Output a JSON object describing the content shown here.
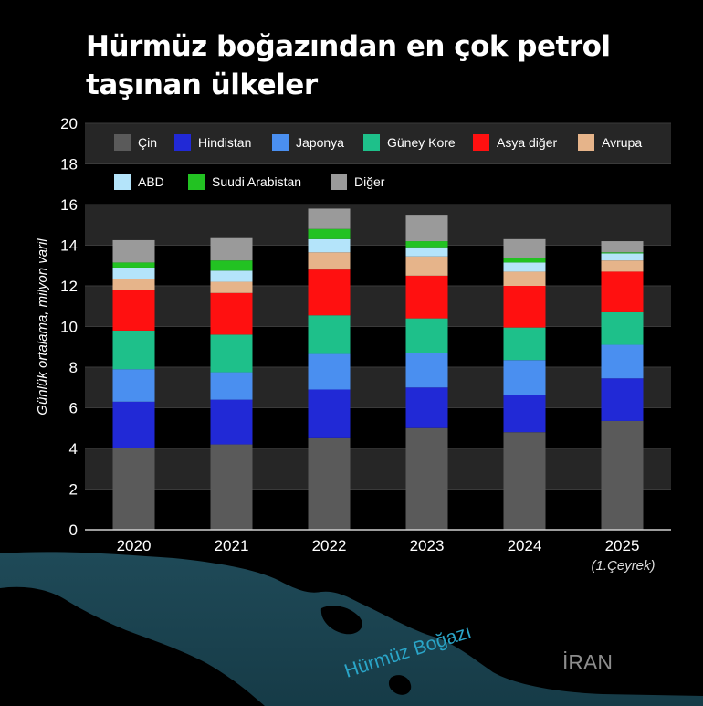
{
  "title": "Hürmüz boğazından en çok petrol taşınan ülkeler",
  "map": {
    "strait_label": "Hürmüz Boğazı",
    "country_label": "İRAN"
  },
  "chart_data": {
    "type": "bar",
    "stacked": true,
    "title": "Hürmüz boğazından en çok petrol taşınan ülkeler",
    "xlabel": "",
    "ylabel": "Günlük ortalama, milyon varil",
    "ylim": [
      0,
      20
    ],
    "yticks": [
      0,
      2,
      4,
      6,
      8,
      10,
      12,
      14,
      16,
      18,
      20
    ],
    "categories": [
      "2020",
      "2021",
      "2022",
      "2023",
      "2024",
      "2025"
    ],
    "category_notes": [
      "",
      "",
      "",
      "",
      "",
      "(1.Çeyrek)"
    ],
    "legend_position": "top",
    "series": [
      {
        "name": "Çin",
        "color": "#5a5a5a",
        "values": [
          4.0,
          4.2,
          4.5,
          5.0,
          4.8,
          5.35
        ]
      },
      {
        "name": "Hindistan",
        "color": "#2129d6",
        "values": [
          2.3,
          2.2,
          2.4,
          2.0,
          1.85,
          2.1
        ]
      },
      {
        "name": "Japonya",
        "color": "#4a8ff0",
        "values": [
          1.6,
          1.35,
          1.75,
          1.7,
          1.7,
          1.65
        ]
      },
      {
        "name": "Güney Kore",
        "color": "#1ec08a",
        "values": [
          1.9,
          1.85,
          1.9,
          1.7,
          1.6,
          1.6
        ]
      },
      {
        "name": "Asya diğer",
        "color": "#ff1010",
        "values": [
          2.0,
          2.05,
          2.25,
          2.1,
          2.05,
          2.0
        ]
      },
      {
        "name": "Avrupa",
        "color": "#e6b48a",
        "values": [
          0.55,
          0.55,
          0.85,
          0.95,
          0.7,
          0.55
        ]
      },
      {
        "name": "ABD",
        "color": "#b4e4fa",
        "values": [
          0.55,
          0.55,
          0.65,
          0.45,
          0.45,
          0.35
        ]
      },
      {
        "name": "Suudi Arabistan",
        "color": "#22c222",
        "values": [
          0.25,
          0.5,
          0.5,
          0.3,
          0.2,
          0.05
        ]
      },
      {
        "name": "Diğer",
        "color": "#9a9a9a",
        "values": [
          1.1,
          1.1,
          1.0,
          1.3,
          0.95,
          0.55
        ]
      }
    ]
  }
}
